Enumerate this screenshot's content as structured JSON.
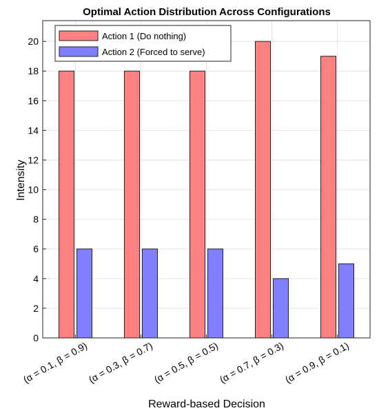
{
  "chart_data": {
    "type": "bar",
    "title": "Optimal Action Distribution Across Configurations",
    "xlabel": "Reward-based Decision",
    "ylabel": "Intensity",
    "categories": [
      "(α = 0.1, β = 0.9)",
      "(α = 0.3, β = 0.7)",
      "(α = 0.5, β = 0.5)",
      "(α = 0.7, β = 0.3)",
      "(α = 0.9, β = 0.1)"
    ],
    "series": [
      {
        "name": "Action 1 (Do nothing)",
        "values": [
          18,
          18,
          18,
          20,
          19
        ],
        "color": "#ff8080"
      },
      {
        "name": "Action 2 (Forced to serve)",
        "values": [
          6,
          6,
          6,
          4,
          5
        ],
        "color": "#8080ff"
      }
    ],
    "ylim": [
      0,
      21.4
    ],
    "yticks": [
      0,
      2,
      4,
      6,
      8,
      10,
      12,
      14,
      16,
      18,
      20
    ],
    "grid": true,
    "legend_position": "top-left"
  }
}
